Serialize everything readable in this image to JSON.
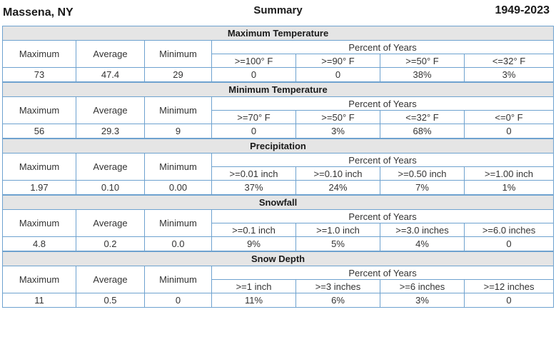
{
  "header": {
    "station": "Massena, NY",
    "title": "Summary",
    "years": "1949-2023"
  },
  "sections": [
    {
      "title": "Maximum Temperature",
      "stat_labels": [
        "Maximum",
        "Average",
        "Minimum"
      ],
      "percent_label": "Percent of Years",
      "thresholds": [
        ">=100° F",
        ">=90° F",
        ">=50° F",
        "<=32° F"
      ],
      "values": [
        "73",
        "47.4",
        "29",
        "0",
        "0",
        "38%",
        "3%"
      ]
    },
    {
      "title": "Minimum Temperature",
      "stat_labels": [
        "Maximum",
        "Average",
        "Minimum"
      ],
      "percent_label": "Percent of Years",
      "thresholds": [
        ">=70° F",
        ">=50° F",
        "<=32° F",
        "<=0° F"
      ],
      "values": [
        "56",
        "29.3",
        "9",
        "0",
        "3%",
        "68%",
        "0"
      ]
    },
    {
      "title": "Precipitation",
      "stat_labels": [
        "Maximum",
        "Average",
        "Minimum"
      ],
      "percent_label": "Percent of Years",
      "thresholds": [
        ">=0.01 inch",
        ">=0.10 inch",
        ">=0.50 inch",
        ">=1.00 inch"
      ],
      "values": [
        "1.97",
        "0.10",
        "0.00",
        "37%",
        "24%",
        "7%",
        "1%"
      ]
    },
    {
      "title": "Snowfall",
      "stat_labels": [
        "Maximum",
        "Average",
        "Minimum"
      ],
      "percent_label": "Percent of Years",
      "thresholds": [
        ">=0.1 inch",
        ">=1.0 inch",
        ">=3.0 inches",
        ">=6.0 inches"
      ],
      "values": [
        "4.8",
        "0.2",
        "0.0",
        "9%",
        "5%",
        "4%",
        "0"
      ]
    },
    {
      "title": "Snow Depth",
      "stat_labels": [
        "Maximum",
        "Average",
        "Minimum"
      ],
      "percent_label": "Percent of Years",
      "thresholds": [
        ">=1 inch",
        ">=3 inches",
        ">=6 inches",
        ">=12 inches"
      ],
      "values": [
        "11",
        "0.5",
        "0",
        "11%",
        "6%",
        "3%",
        "0"
      ]
    }
  ]
}
